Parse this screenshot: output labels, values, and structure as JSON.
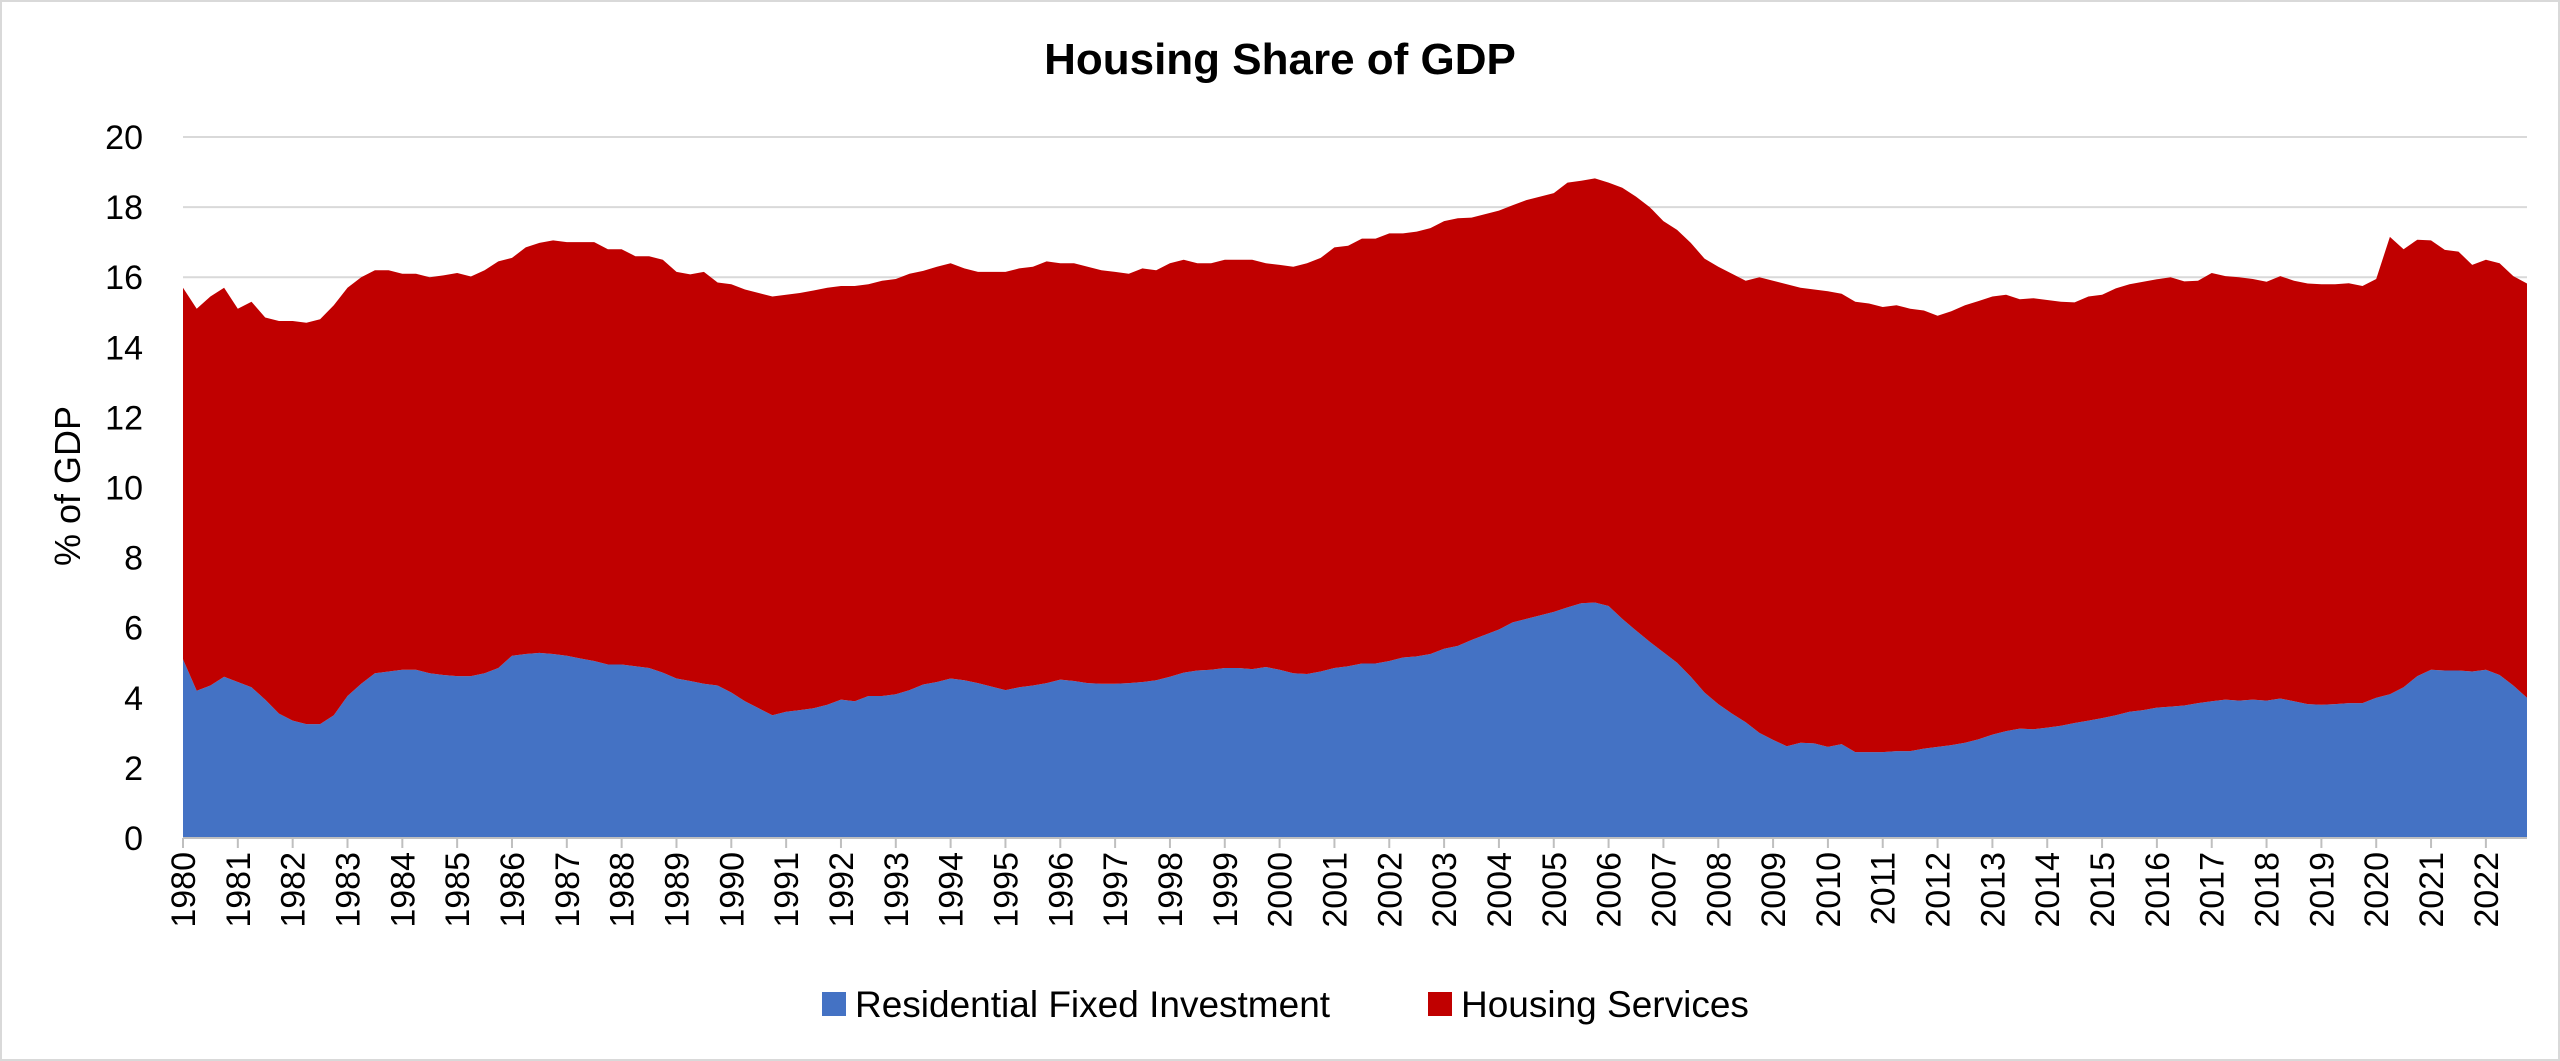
{
  "chart_data": {
    "type": "area",
    "stacked": true,
    "title": "Housing Share of GDP",
    "xlabel": "",
    "ylabel": "% of GDP",
    "ylim": [
      0,
      20
    ],
    "yticks": [
      "0",
      "2",
      "4",
      "6",
      "8",
      "10",
      "12",
      "14",
      "16",
      "18",
      "20"
    ],
    "x_range": [
      1980,
      2022.75
    ],
    "grid": "horizontal",
    "legend": "bottom",
    "categories": [
      "1980",
      "1981",
      "1982",
      "1983",
      "1984",
      "1985",
      "1986",
      "1987",
      "1988",
      "1989",
      "1990",
      "1991",
      "1992",
      "1993",
      "1994",
      "1995",
      "1996",
      "1997",
      "1998",
      "1999",
      "2000",
      "2001",
      "2002",
      "2003",
      "2004",
      "2005",
      "2006",
      "2007",
      "2008",
      "2009",
      "2010",
      "2011",
      "2012",
      "2013",
      "2014",
      "2015",
      "2016",
      "2017",
      "2018",
      "2019",
      "2020",
      "2021",
      "2022"
    ],
    "x": [
      1980,
      1980.25,
      1980.5,
      1980.75,
      1981,
      1981.25,
      1981.5,
      1981.75,
      1982,
      1982.25,
      1982.5,
      1982.75,
      1983,
      1983.25,
      1983.5,
      1983.75,
      1984,
      1984.25,
      1984.5,
      1984.75,
      1985,
      1985.25,
      1985.5,
      1985.75,
      1986,
      1986.25,
      1986.5,
      1986.75,
      1987,
      1987.25,
      1987.5,
      1987.75,
      1988,
      1988.25,
      1988.5,
      1988.75,
      1989,
      1989.25,
      1989.5,
      1989.75,
      1990,
      1990.25,
      1990.5,
      1990.75,
      1991,
      1991.25,
      1991.5,
      1991.75,
      1992,
      1992.25,
      1992.5,
      1992.75,
      1993,
      1993.25,
      1993.5,
      1993.75,
      1994,
      1994.25,
      1994.5,
      1994.75,
      1995,
      1995.25,
      1995.5,
      1995.75,
      1996,
      1996.25,
      1996.5,
      1996.75,
      1997,
      1997.25,
      1997.5,
      1997.75,
      1998,
      1998.25,
      1998.5,
      1998.75,
      1999,
      1999.25,
      1999.5,
      1999.75,
      2000,
      2000.25,
      2000.5,
      2000.75,
      2001,
      2001.25,
      2001.5,
      2001.75,
      2002,
      2002.25,
      2002.5,
      2002.75,
      2003,
      2003.25,
      2003.5,
      2003.75,
      2004,
      2004.25,
      2004.5,
      2004.75,
      2005,
      2005.25,
      2005.5,
      2005.75,
      2006,
      2006.25,
      2006.5,
      2006.75,
      2007,
      2007.25,
      2007.5,
      2007.75,
      2008,
      2008.25,
      2008.5,
      2008.75,
      2009,
      2009.25,
      2009.5,
      2009.75,
      2010,
      2010.25,
      2010.5,
      2010.75,
      2011,
      2011.25,
      2011.5,
      2011.75,
      2012,
      2012.25,
      2012.5,
      2012.75,
      2013,
      2013.25,
      2013.5,
      2013.75,
      2014,
      2014.25,
      2014.5,
      2014.75,
      2015,
      2015.25,
      2015.5,
      2015.75,
      2016,
      2016.25,
      2016.5,
      2016.75,
      2017,
      2017.25,
      2017.5,
      2017.75,
      2018,
      2018.25,
      2018.5,
      2018.75,
      2019,
      2019.25,
      2019.5,
      2019.75,
      2020,
      2020.25,
      2020.5,
      2020.75,
      2021,
      2021.25,
      2021.5,
      2021.75,
      2022,
      2022.25,
      2022.5,
      2022.75
    ],
    "series": [
      {
        "name": "Residential Fixed Investment",
        "color": "#4472c4",
        "values": [
          5.1,
          4.2,
          4.35,
          4.6,
          4.45,
          4.3,
          3.95,
          3.55,
          3.35,
          3.25,
          3.25,
          3.5,
          4.05,
          4.4,
          4.7,
          4.75,
          4.8,
          4.8,
          4.7,
          4.65,
          4.62,
          4.62,
          4.7,
          4.85,
          5.2,
          5.25,
          5.28,
          5.25,
          5.2,
          5.12,
          5.05,
          4.95,
          4.95,
          4.9,
          4.85,
          4.72,
          4.55,
          4.48,
          4.4,
          4.35,
          4.15,
          3.9,
          3.7,
          3.5,
          3.6,
          3.65,
          3.7,
          3.8,
          3.95,
          3.9,
          4.05,
          4.05,
          4.1,
          4.22,
          4.38,
          4.45,
          4.55,
          4.5,
          4.42,
          4.32,
          4.22,
          4.3,
          4.35,
          4.42,
          4.52,
          4.48,
          4.42,
          4.4,
          4.4,
          4.42,
          4.45,
          4.5,
          4.6,
          4.72,
          4.78,
          4.8,
          4.85,
          4.85,
          4.82,
          4.88,
          4.8,
          4.7,
          4.68,
          4.75,
          4.85,
          4.9,
          4.98,
          4.98,
          5.05,
          5.15,
          5.18,
          5.25,
          5.4,
          5.48,
          5.65,
          5.8,
          5.95,
          6.15,
          6.25,
          6.35,
          6.45,
          6.58,
          6.7,
          6.72,
          6.62,
          6.25,
          5.92,
          5.6,
          5.3,
          5.0,
          4.6,
          4.15,
          3.82,
          3.55,
          3.3,
          3.0,
          2.8,
          2.62,
          2.72,
          2.7,
          2.6,
          2.68,
          2.45,
          2.45,
          2.45,
          2.48,
          2.48,
          2.55,
          2.6,
          2.65,
          2.72,
          2.82,
          2.95,
          3.05,
          3.12,
          3.1,
          3.15,
          3.2,
          3.28,
          3.35,
          3.42,
          3.5,
          3.6,
          3.65,
          3.72,
          3.75,
          3.78,
          3.85,
          3.9,
          3.95,
          3.92,
          3.95,
          3.92,
          3.98,
          3.9,
          3.82,
          3.8,
          3.82,
          3.85,
          3.85,
          4.0,
          4.1,
          4.3,
          4.62,
          4.8,
          4.78,
          4.78,
          4.75,
          4.8,
          4.65,
          4.35,
          4.0
        ]
      },
      {
        "name": "Housing Services",
        "color": "#c00000",
        "values": [
          10.6,
          10.9,
          11.1,
          11.1,
          10.65,
          11.0,
          10.9,
          11.2,
          11.4,
          11.45,
          11.55,
          11.7,
          11.65,
          11.6,
          11.5,
          11.45,
          11.3,
          11.3,
          11.3,
          11.4,
          11.5,
          11.4,
          11.5,
          11.6,
          11.35,
          11.6,
          11.7,
          11.8,
          11.8,
          11.88,
          11.95,
          11.85,
          11.85,
          11.7,
          11.75,
          11.78,
          11.6,
          11.6,
          11.75,
          11.5,
          11.65,
          11.75,
          11.85,
          11.95,
          11.9,
          11.9,
          11.92,
          11.9,
          11.8,
          11.85,
          11.75,
          11.85,
          11.85,
          11.88,
          11.8,
          11.85,
          11.85,
          11.75,
          11.73,
          11.83,
          11.93,
          11.95,
          11.95,
          12.03,
          11.88,
          11.92,
          11.88,
          11.8,
          11.75,
          11.68,
          11.8,
          11.7,
          11.8,
          11.78,
          11.62,
          11.6,
          11.65,
          11.65,
          11.68,
          11.52,
          11.55,
          11.6,
          11.72,
          11.8,
          12.0,
          12.0,
          12.12,
          12.12,
          12.2,
          12.1,
          12.12,
          12.15,
          12.2,
          12.2,
          12.05,
          12.0,
          11.95,
          11.9,
          11.95,
          11.95,
          11.95,
          12.12,
          12.05,
          12.1,
          12.08,
          12.3,
          12.38,
          12.4,
          12.3,
          12.35,
          12.38,
          12.38,
          12.48,
          12.55,
          12.6,
          13.0,
          13.1,
          13.18,
          12.98,
          12.95,
          13.0,
          12.85,
          12.85,
          12.8,
          12.7,
          12.72,
          12.62,
          12.5,
          12.3,
          12.38,
          12.48,
          12.5,
          12.5,
          12.45,
          12.25,
          12.3,
          12.2,
          12.1,
          12.0,
          12.1,
          12.08,
          12.18,
          12.2,
          12.22,
          12.22,
          12.25,
          12.1,
          12.05,
          12.22,
          12.08,
          12.08,
          12.0,
          11.95,
          12.05,
          12.0,
          12.0,
          12.0,
          11.98,
          11.98,
          11.9,
          11.95,
          13.05,
          12.5,
          12.45,
          12.25,
          12.0,
          11.95,
          11.6,
          11.7,
          11.75,
          11.68,
          11.82
        ]
      }
    ],
    "legend_entries": [
      "Residential Fixed Investment",
      "Housing Services"
    ]
  }
}
